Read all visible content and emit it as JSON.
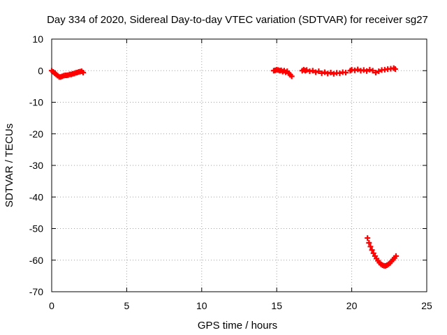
{
  "chart_data": {
    "type": "scatter",
    "title": "Day 334 of 2020, Sidereal Day-to-day VTEC variation (SDTVAR) for receiver sg27",
    "xlabel": "GPS time / hours",
    "ylabel": "SDTVAR / TECUs",
    "xlim": [
      0,
      25
    ],
    "ylim": [
      -70,
      10
    ],
    "xticks": [
      0,
      5,
      10,
      15,
      20,
      25
    ],
    "yticks": [
      10,
      0,
      -10,
      -20,
      -30,
      -40,
      -50,
      -60,
      -70
    ],
    "grid": true,
    "marker": "plus",
    "series": [
      {
        "name": "SDTVAR",
        "color": "#ff0000",
        "segments": [
          {
            "x": [
              0.0,
              0.1,
              0.2,
              0.3,
              0.4,
              0.5,
              0.6,
              0.7,
              0.8,
              0.9,
              1.0,
              1.1,
              1.2,
              1.3,
              1.4,
              1.5,
              1.6,
              1.7,
              1.8,
              1.9,
              2.0,
              2.1
            ],
            "y": [
              0.0,
              -0.4,
              -0.8,
              -1.2,
              -1.6,
              -2.0,
              -2.0,
              -1.8,
              -1.6,
              -1.5,
              -1.5,
              -1.4,
              -1.2,
              -1.2,
              -1.0,
              -0.9,
              -0.7,
              -0.6,
              -0.4,
              -0.3,
              -0.2,
              -0.6
            ]
          },
          {
            "x": [
              14.8,
              14.9,
              15.0,
              15.1,
              15.2,
              15.3,
              15.4,
              15.5,
              15.6,
              15.7,
              15.8,
              15.9,
              16.0
            ],
            "y": [
              0.0,
              0.1,
              0.3,
              0.2,
              0.0,
              0.1,
              -0.3,
              0.0,
              -0.5,
              -0.2,
              -0.8,
              -1.3,
              -1.8
            ]
          },
          {
            "x": [
              16.7,
              16.8,
              16.9,
              17.0,
              17.2,
              17.4,
              17.6,
              17.8,
              18.0,
              18.2,
              18.4,
              18.6,
              18.8,
              19.0,
              19.2,
              19.4,
              19.6
            ],
            "y": [
              0.0,
              0.3,
              0.0,
              0.2,
              -0.2,
              0.0,
              -0.5,
              -0.2,
              -0.8,
              -0.5,
              -0.9,
              -0.6,
              -1.0,
              -0.7,
              -0.8,
              -0.5,
              -0.6
            ]
          },
          {
            "x": [
              19.9,
              20.0,
              20.2,
              20.4,
              20.6,
              20.8,
              21.0,
              21.2,
              21.4
            ],
            "y": [
              0.0,
              0.3,
              0.1,
              0.4,
              0.0,
              0.2,
              -0.1,
              0.3,
              0.0
            ]
          },
          {
            "x": [
              21.6,
              21.8,
              22.0,
              22.2,
              22.4,
              22.6,
              22.8,
              22.9
            ],
            "y": [
              -0.6,
              -0.2,
              0.2,
              0.3,
              0.5,
              0.6,
              0.8,
              0.5
            ]
          },
          {
            "x": [
              21.05,
              21.15,
              21.25,
              21.35,
              21.45,
              21.55,
              21.65,
              21.75,
              21.85,
              21.95,
              22.05,
              22.15,
              22.25,
              22.35,
              22.45,
              22.55,
              22.65,
              22.75,
              22.85,
              22.95
            ],
            "y": [
              -53.0,
              -54.5,
              -55.7,
              -56.8,
              -57.8,
              -58.7,
              -59.5,
              -60.2,
              -60.8,
              -61.3,
              -61.6,
              -61.8,
              -61.8,
              -61.6,
              -61.3,
              -60.9,
              -60.4,
              -59.8,
              -59.3,
              -58.7
            ]
          }
        ]
      }
    ]
  }
}
